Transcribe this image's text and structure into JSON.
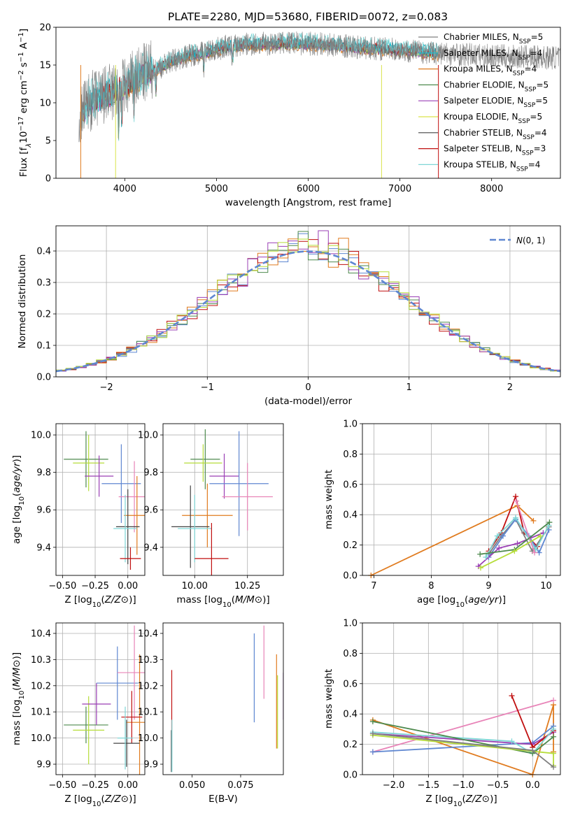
{
  "title": "PLATE=2280, MJD=53680, FIBERID=0072, z=0.083",
  "colors": {
    "chabrier_miles": "#7f7f7f",
    "salpeter_miles": "#17becf",
    "kroupa_miles": "#e07b1f",
    "chabrier_elodie": "#4e8a4e",
    "salpeter_elodie": "#9a3fb5",
    "kroupa_elodie": "#d9e34a",
    "chabrier_stelib": "#444444",
    "salpeter_stelib": "#c00f0f",
    "kroupa_stelib": "#7fd6d6",
    "blue": "#5f87d1",
    "pink": "#e884b8",
    "lime": "#b6dd3a",
    "grid": "#b0b0b0"
  },
  "chart_data": [
    {
      "type": "line",
      "id": "spectrum",
      "xlabel": "wavelength [Angstrom, rest frame]",
      "ylabel": "Flux [f$_\\lambda$10$^{-17}$ erg cm$^{-2}$ s$^{-1}$ A$^{-1}$]",
      "ylabel_parts": [
        "Flux [f",
        "λ",
        "10",
        "−17",
        " erg cm",
        "−2",
        " s",
        "−1",
        " A",
        "−1",
        "]"
      ],
      "xlim": [
        3250,
        8750
      ],
      "ylim": [
        0,
        20
      ],
      "xticks": [
        4000,
        5000,
        6000,
        7000,
        8000
      ],
      "yticks": [
        0,
        5,
        10,
        15,
        20
      ],
      "grid": false,
      "legend_position": "right",
      "spectrum_shape": {
        "x": [
          3500,
          3600,
          3700,
          3800,
          3900,
          4000,
          4100,
          4200,
          4300,
          4400,
          4500,
          4700,
          4900,
          5100,
          5300,
          5500,
          5800,
          6100,
          6500,
          7000,
          7500,
          8000,
          8500
        ],
        "y": [
          8.0,
          10.0,
          10.5,
          11.0,
          11.5,
          12.0,
          13.0,
          13.8,
          14.3,
          14.8,
          15.5,
          16.3,
          16.8,
          17.4,
          17.7,
          17.8,
          17.9,
          17.8,
          17.4,
          17.0,
          16.5,
          16.2,
          16.0
        ]
      },
      "legend": [
        {
          "label": "Chabrier MILES, N",
          "sub": "SSP",
          "suffix": "=5",
          "color_key": "chabrier_miles"
        },
        {
          "label": "Salpeter MILES, N",
          "sub": "SSP",
          "suffix": "=4",
          "color_key": "salpeter_miles"
        },
        {
          "label": "Kroupa MILES, N",
          "sub": "SSP",
          "suffix": "=4",
          "color_key": "kroupa_miles"
        },
        {
          "label": "Chabrier ELODIE, N",
          "sub": "SSP",
          "suffix": "=5",
          "color_key": "chabrier_elodie"
        },
        {
          "label": "Salpeter ELODIE, N",
          "sub": "SSP",
          "suffix": "=5",
          "color_key": "salpeter_elodie"
        },
        {
          "label": "Kroupa ELODIE, N",
          "sub": "SSP",
          "suffix": "=5",
          "color_key": "kroupa_elodie"
        },
        {
          "label": "Chabrier STELIB, N",
          "sub": "SSP",
          "suffix": "=4",
          "color_key": "chabrier_stelib"
        },
        {
          "label": "Salpeter STELIB, N",
          "sub": "SSP",
          "suffix": "=3",
          "color_key": "salpeter_stelib"
        },
        {
          "label": "Kroupa STELIB, N",
          "sub": "SSP",
          "suffix": "=4",
          "color_key": "kroupa_stelib"
        }
      ]
    },
    {
      "type": "line",
      "id": "residuals",
      "xlabel": "(data-model)/error",
      "ylabel": "Normed distribution",
      "xlim": [
        -2.5,
        2.5
      ],
      "ylim": [
        0,
        0.48
      ],
      "xticks": [
        -2,
        -1,
        0,
        1,
        2
      ],
      "yticks": [
        0.0,
        0.1,
        0.2,
        0.3,
        0.4
      ],
      "grid": true,
      "legend_position": "top-right",
      "legend": "N(0, 1)",
      "histogram_bin_width": 0.1,
      "series_colors": [
        "blue",
        "kroupa_miles",
        "salpeter_stelib",
        "chabrier_elodie",
        "salpeter_elodie",
        "lime"
      ]
    },
    {
      "type": "scatter",
      "id": "age_vs_Z",
      "xlabel": "Z [log10(Z/Z⊙)]",
      "ylabel": "age  [log10(age/yr)]",
      "xlim": [
        -0.55,
        0.13
      ],
      "ylim": [
        9.25,
        10.06
      ],
      "xticks": [
        -0.5,
        -0.25,
        0.0
      ],
      "yticks": [
        9.4,
        9.6,
        9.8,
        10.0
      ],
      "grid": true,
      "points": [
        {
          "x": -0.32,
          "y": 9.87,
          "xerr": 0.17,
          "yerr": 0.15,
          "color": "chabrier_elodie"
        },
        {
          "x": -0.3,
          "y": 9.85,
          "xerr": 0.12,
          "yerr": 0.15,
          "color": "lime"
        },
        {
          "x": -0.22,
          "y": 9.78,
          "xerr": 0.11,
          "yerr": 0.11,
          "color": "salpeter_elodie"
        },
        {
          "x": -0.05,
          "y": 9.74,
          "xerr": 0.15,
          "yerr": 0.21,
          "color": "blue"
        },
        {
          "x": 0.05,
          "y": 9.67,
          "xerr": 0.12,
          "yerr": 0.19,
          "color": "pink"
        },
        {
          "x": 0.07,
          "y": 9.57,
          "xerr": 0.1,
          "yerr": 0.21,
          "color": "kroupa_miles"
        },
        {
          "x": 0.0,
          "y": 9.51,
          "xerr": 0.09,
          "yerr": 0.2,
          "color": "chabrier_stelib"
        },
        {
          "x": -0.02,
          "y": 9.5,
          "xerr": 0.09,
          "yerr": 0.18,
          "color": "kroupa_stelib"
        },
        {
          "x": 0.02,
          "y": 9.34,
          "xerr": 0.08,
          "yerr": 0.06,
          "color": "salpeter_stelib"
        }
      ]
    },
    {
      "type": "scatter",
      "id": "age_vs_mass",
      "xlabel": "mass [log10(M/M⊙)]",
      "ylabel": "",
      "xlim": [
        9.85,
        10.42
      ],
      "ylim": [
        9.25,
        10.06
      ],
      "xticks": [
        10.0,
        10.25
      ],
      "yticks": [
        9.4,
        9.6,
        9.8,
        10.0
      ],
      "grid": true,
      "points": [
        {
          "x": 10.05,
          "y": 9.87,
          "xerr": 0.07,
          "yerr": 0.16,
          "color": "chabrier_elodie"
        },
        {
          "x": 10.04,
          "y": 9.85,
          "xerr": 0.09,
          "yerr": 0.1,
          "color": "lime"
        },
        {
          "x": 10.14,
          "y": 9.78,
          "xerr": 0.07,
          "yerr": 0.12,
          "color": "salpeter_elodie"
        },
        {
          "x": 10.21,
          "y": 9.74,
          "xerr": 0.14,
          "yerr": 0.28,
          "color": "blue"
        },
        {
          "x": 10.25,
          "y": 9.67,
          "xerr": 0.12,
          "yerr": 0.18,
          "color": "pink"
        },
        {
          "x": 10.06,
          "y": 9.57,
          "xerr": 0.12,
          "yerr": 0.17,
          "color": "kroupa_miles"
        },
        {
          "x": 9.98,
          "y": 9.51,
          "xerr": 0.09,
          "yerr": 0.22,
          "color": "chabrier_stelib"
        },
        {
          "x": 10.0,
          "y": 9.5,
          "xerr": 0.08,
          "yerr": 0.18,
          "color": "kroupa_stelib"
        },
        {
          "x": 10.08,
          "y": 9.34,
          "xerr": 0.08,
          "yerr": 0.19,
          "color": "salpeter_stelib"
        }
      ]
    },
    {
      "type": "line",
      "id": "weight_vs_age",
      "xlabel": "age  [log10(age/yr)]",
      "ylabel": "mass weight",
      "xlim": [
        6.8,
        10.25
      ],
      "ylim": [
        0,
        1
      ],
      "xticks": [
        7,
        8,
        9,
        10
      ],
      "yticks": [
        0.0,
        0.2,
        0.4,
        0.6,
        0.8,
        1.0
      ],
      "grid": true,
      "series": [
        {
          "color": "kroupa_miles",
          "x": [
            6.95,
            9.5,
            9.78
          ],
          "y": [
            0.0,
            0.46,
            0.36
          ]
        },
        {
          "color": "salpeter_stelib",
          "x": [
            9.0,
            9.22,
            9.47,
            9.62,
            9.85
          ],
          "y": [
            0.16,
            0.28,
            0.52,
            0.28,
            0.19
          ]
        },
        {
          "color": "chabrier_miles",
          "x": [
            9.0,
            9.22,
            9.47,
            9.76,
            10.05
          ],
          "y": [
            0.14,
            0.26,
            0.37,
            0.16,
            0.32
          ]
        },
        {
          "color": "blue",
          "x": [
            9.0,
            9.25,
            9.47,
            9.7,
            9.88,
            10.05
          ],
          "y": [
            0.12,
            0.26,
            0.37,
            0.26,
            0.15,
            0.3
          ]
        },
        {
          "color": "salpeter_elodie",
          "x": [
            8.82,
            9.18,
            9.5,
            9.95
          ],
          "y": [
            0.06,
            0.18,
            0.21,
            0.28
          ]
        },
        {
          "color": "kroupa_stelib",
          "x": [
            8.95,
            9.15,
            9.47,
            9.82,
            10.05
          ],
          "y": [
            0.12,
            0.26,
            0.38,
            0.17,
            0.33
          ]
        },
        {
          "color": "pink",
          "x": [
            9.48,
            9.8
          ],
          "y": [
            0.49,
            0.15
          ]
        },
        {
          "color": "chabrier_elodie",
          "x": [
            8.85,
            9.45,
            10.06
          ],
          "y": [
            0.14,
            0.17,
            0.35
          ]
        },
        {
          "color": "lime",
          "x": [
            8.86,
            9.45,
            9.9
          ],
          "y": [
            0.05,
            0.16,
            0.26
          ]
        }
      ]
    },
    {
      "type": "scatter",
      "id": "mass_vs_Z",
      "xlabel": "Z [log10(Z/Z⊙)]",
      "ylabel": "mass [log10(M/M⊙)]",
      "xlim": [
        -0.55,
        0.13
      ],
      "ylim": [
        9.86,
        10.44
      ],
      "xticks": [
        -0.5,
        -0.25,
        0.0
      ],
      "yticks": [
        9.9,
        10.0,
        10.1,
        10.2,
        10.3,
        10.4
      ],
      "grid": true,
      "points": [
        {
          "x": -0.32,
          "y": 10.05,
          "xerr": 0.17,
          "yerr": 0.07,
          "color": "chabrier_elodie"
        },
        {
          "x": -0.3,
          "y": 10.03,
          "xerr": 0.12,
          "yerr": 0.13,
          "color": "lime"
        },
        {
          "x": -0.24,
          "y": 10.13,
          "xerr": 0.11,
          "yerr": 0.08,
          "color": "salpeter_elodie"
        },
        {
          "x": -0.08,
          "y": 10.21,
          "xerr": 0.16,
          "yerr": 0.14,
          "color": "blue"
        },
        {
          "x": 0.05,
          "y": 10.25,
          "xerr": 0.13,
          "yerr": 0.18,
          "color": "pink"
        },
        {
          "x": 0.09,
          "y": 10.06,
          "xerr": 0.1,
          "yerr": 0.26,
          "color": "kroupa_miles"
        },
        {
          "x": 0.03,
          "y": 10.08,
          "xerr": 0.08,
          "yerr": 0.1,
          "color": "salpeter_stelib"
        },
        {
          "x": -0.01,
          "y": 9.98,
          "xerr": 0.1,
          "yerr": 0.09,
          "color": "chabrier_stelib"
        },
        {
          "x": -0.02,
          "y": 10.0,
          "xerr": 0.06,
          "yerr": 0.12,
          "color": "kroupa_stelib"
        }
      ]
    },
    {
      "type": "scatter",
      "id": "mass_vs_ebv",
      "xlabel": "E(B-V)",
      "ylabel": "",
      "xlim": [
        0.035,
        0.097
      ],
      "ylim": [
        9.86,
        10.44
      ],
      "xticks": [
        0.05,
        0.075
      ],
      "yticks": [
        9.9,
        10.0,
        10.1,
        10.2,
        10.3,
        10.4
      ],
      "grid": false,
      "points": [
        {
          "x": 0.0395,
          "y": 10.09,
          "yerr": 0.17,
          "color": "salpeter_stelib"
        },
        {
          "x": 0.0393,
          "y": 9.95,
          "yerr": 0.08,
          "color": "chabrier_stelib"
        },
        {
          "x": 0.0396,
          "y": 9.97,
          "yerr": 0.1,
          "color": "kroupa_stelib"
        },
        {
          "x": 0.082,
          "y": 10.23,
          "yerr": 0.17,
          "color": "blue"
        },
        {
          "x": 0.087,
          "y": 10.29,
          "yerr": 0.14,
          "color": "pink"
        },
        {
          "x": 0.0935,
          "y": 10.14,
          "yerr": 0.18,
          "color": "kroupa_miles"
        },
        {
          "x": 0.094,
          "y": 10.1,
          "yerr": 0.14,
          "color": "lime"
        },
        {
          "x": 0.097,
          "y": 10.16,
          "yerr": 0.09,
          "color": "salpeter_elodie"
        }
      ]
    },
    {
      "type": "line",
      "id": "weight_vs_Z",
      "xlabel": "Z [log10(Z/Z⊙)]",
      "ylabel": "mass weight",
      "xlim": [
        -2.45,
        0.4
      ],
      "ylim": [
        0,
        1
      ],
      "xticks": [
        -2.0,
        -1.5,
        -1.0,
        -0.5,
        0.0
      ],
      "yticks": [
        0.0,
        0.2,
        0.4,
        0.6,
        0.8,
        1.0
      ],
      "grid": true,
      "series": [
        {
          "color": "kroupa_miles",
          "x": [
            -2.3,
            0.0,
            0.3,
            0.3
          ],
          "y": [
            0.36,
            0.0,
            0.46,
            0.15
          ]
        },
        {
          "color": "pink",
          "x": [
            -2.3,
            0.3
          ],
          "y": [
            0.15,
            0.49
          ]
        },
        {
          "color": "blue",
          "x": [
            -2.3,
            0.0,
            0.3
          ],
          "y": [
            0.15,
            0.21,
            0.32
          ]
        },
        {
          "color": "salpeter_elodie",
          "x": [
            -2.3,
            0.0,
            0.3
          ],
          "y": [
            0.27,
            0.2,
            0.28
          ]
        },
        {
          "color": "salpeter_stelib",
          "x": [
            -0.3,
            0.0,
            0.3
          ],
          "y": [
            0.52,
            0.18,
            0.29
          ]
        },
        {
          "color": "kroupa_stelib",
          "x": [
            -2.3,
            -0.3,
            0.0,
            0.3
          ],
          "y": [
            0.28,
            0.22,
            0.14,
            0.3
          ]
        },
        {
          "color": "chabrier_elodie",
          "x": [
            -2.3,
            0.0,
            0.3
          ],
          "y": [
            0.35,
            0.14,
            0.25
          ]
        },
        {
          "color": "lime",
          "x": [
            -2.3,
            0.3,
            0.3
          ],
          "y": [
            0.26,
            0.14,
            0.06
          ]
        },
        {
          "color": "chabrier_miles",
          "x": [
            -2.3,
            0.0,
            0.3
          ],
          "y": [
            0.27,
            0.16,
            0.05
          ]
        }
      ]
    }
  ]
}
